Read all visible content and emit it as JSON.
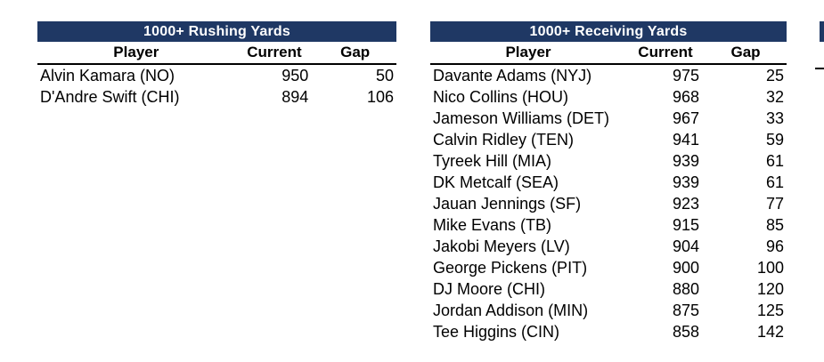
{
  "theme": {
    "header_navy": "#1f3864",
    "header_text": "#ffffff",
    "body_text": "#000000",
    "rule_color": "#000000"
  },
  "tables": [
    {
      "title": "1000+ Rushing Yards",
      "columns": {
        "player": "Player",
        "current": "Current",
        "gap": "Gap"
      },
      "rows": [
        {
          "player": "Alvin Kamara (NO)",
          "current": "950",
          "gap": "50"
        },
        {
          "player": "D'Andre Swift (CHI)",
          "current": "894",
          "gap": "106"
        }
      ]
    },
    {
      "title": "1000+ Receiving Yards",
      "columns": {
        "player": "Player",
        "current": "Current",
        "gap": "Gap"
      },
      "rows": [
        {
          "player": "Davante Adams (NYJ)",
          "current": "975",
          "gap": "25"
        },
        {
          "player": "Nico Collins (HOU)",
          "current": "968",
          "gap": "32"
        },
        {
          "player": "Jameson Williams (DET)",
          "current": "967",
          "gap": "33"
        },
        {
          "player": "Calvin Ridley (TEN)",
          "current": "941",
          "gap": "59"
        },
        {
          "player": "Tyreek Hill (MIA)",
          "current": "939",
          "gap": "61"
        },
        {
          "player": "DK Metcalf (SEA)",
          "current": "939",
          "gap": "61"
        },
        {
          "player": "Jauan Jennings (SF)",
          "current": "923",
          "gap": "77"
        },
        {
          "player": "Mike Evans (TB)",
          "current": "915",
          "gap": "85"
        },
        {
          "player": "Jakobi Meyers (LV)",
          "current": "904",
          "gap": "96"
        },
        {
          "player": "George Pickens (PIT)",
          "current": "900",
          "gap": "100"
        },
        {
          "player": "DJ Moore (CHI)",
          "current": "880",
          "gap": "120"
        },
        {
          "player": "Jordan Addison (MIN)",
          "current": "875",
          "gap": "125"
        },
        {
          "player": "Tee Higgins (CIN)",
          "current": "858",
          "gap": "142"
        }
      ]
    }
  ]
}
